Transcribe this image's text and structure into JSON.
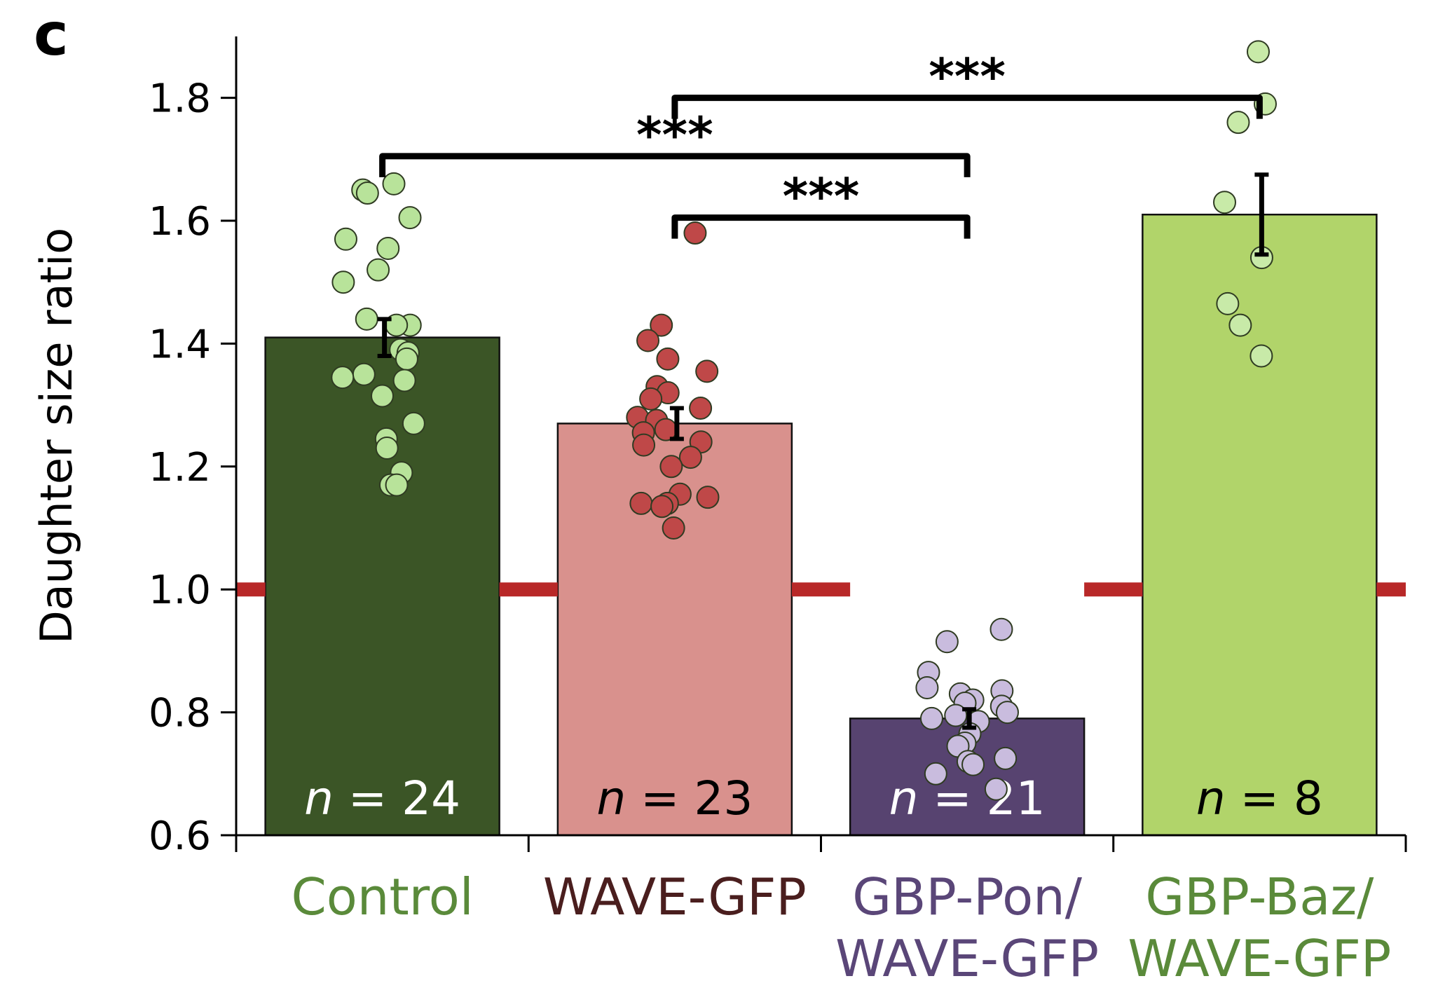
{
  "panel_label": "c",
  "chart_data": {
    "type": "bar",
    "title": "",
    "xlabel": "",
    "ylabel": "Daughter size ratio",
    "ylim": [
      0.6,
      1.9
    ],
    "yticks": [
      "0.6",
      "0.8",
      "1.0",
      "1.2",
      "1.4",
      "1.6",
      "1.8"
    ],
    "reference_line": {
      "y": 1.0,
      "color": "#b82828"
    },
    "categories": [
      {
        "lines": [
          "Control"
        ],
        "label_color": "#5a8a3a"
      },
      {
        "lines": [
          "WAVE-GFP"
        ],
        "label_color": "#4a1e1e"
      },
      {
        "lines": [
          "GBP-Pon/",
          "WAVE-GFP"
        ],
        "label_color": "#5a4678"
      },
      {
        "lines": [
          "GBP-Baz/",
          "WAVE-GFP"
        ],
        "label_color": "#5a8a3a"
      }
    ],
    "values": [
      1.41,
      1.27,
      0.79,
      1.61
    ],
    "errors": [
      0.03,
      0.025,
      0.015,
      0.065
    ],
    "bar_colors": [
      "#3b5526",
      "#d9918d",
      "#574370",
      "#b1d46a"
    ],
    "n_labels": [
      {
        "prefix": "n",
        "text": " = 24",
        "color": "#ffffff"
      },
      {
        "prefix": "n",
        "text": " = 23",
        "color": "#000000"
      },
      {
        "prefix": "n",
        "text": " = 21",
        "color": "#ffffff"
      },
      {
        "prefix": "n",
        "text": " = 8",
        "color": "#000000"
      }
    ],
    "point_colors": [
      "#b8e39a",
      "#bf4848",
      "#c9bcde",
      "#c8eaa8"
    ],
    "points": [
      [
        1.65,
        1.645,
        1.66,
        1.605,
        1.57,
        1.555,
        1.52,
        1.5,
        1.44,
        1.43,
        1.43,
        1.39,
        1.385,
        1.375,
        1.35,
        1.345,
        1.34,
        1.315,
        1.27,
        1.245,
        1.23,
        1.19,
        1.17,
        1.17
      ],
      [
        1.58,
        1.43,
        1.405,
        1.375,
        1.355,
        1.33,
        1.32,
        1.31,
        1.295,
        1.28,
        1.275,
        1.26,
        1.255,
        1.24,
        1.235,
        1.215,
        1.2,
        1.155,
        1.15,
        1.14,
        1.14,
        1.135,
        1.1
      ],
      [
        0.935,
        0.915,
        0.865,
        0.84,
        0.835,
        0.83,
        0.82,
        0.815,
        0.81,
        0.8,
        0.795,
        0.79,
        0.785,
        0.765,
        0.75,
        0.745,
        0.725,
        0.72,
        0.715,
        0.7,
        0.675
      ],
      [
        1.875,
        1.79,
        1.76,
        1.63,
        1.54,
        1.465,
        1.43,
        1.38
      ]
    ],
    "significance": [
      {
        "from": 0,
        "to": 2,
        "label": "***",
        "y": 1.705
      },
      {
        "from": 1,
        "to": 2,
        "label": "***",
        "y": 1.605
      },
      {
        "from": 1,
        "to": 3,
        "label": "***",
        "y": 1.8
      }
    ]
  }
}
